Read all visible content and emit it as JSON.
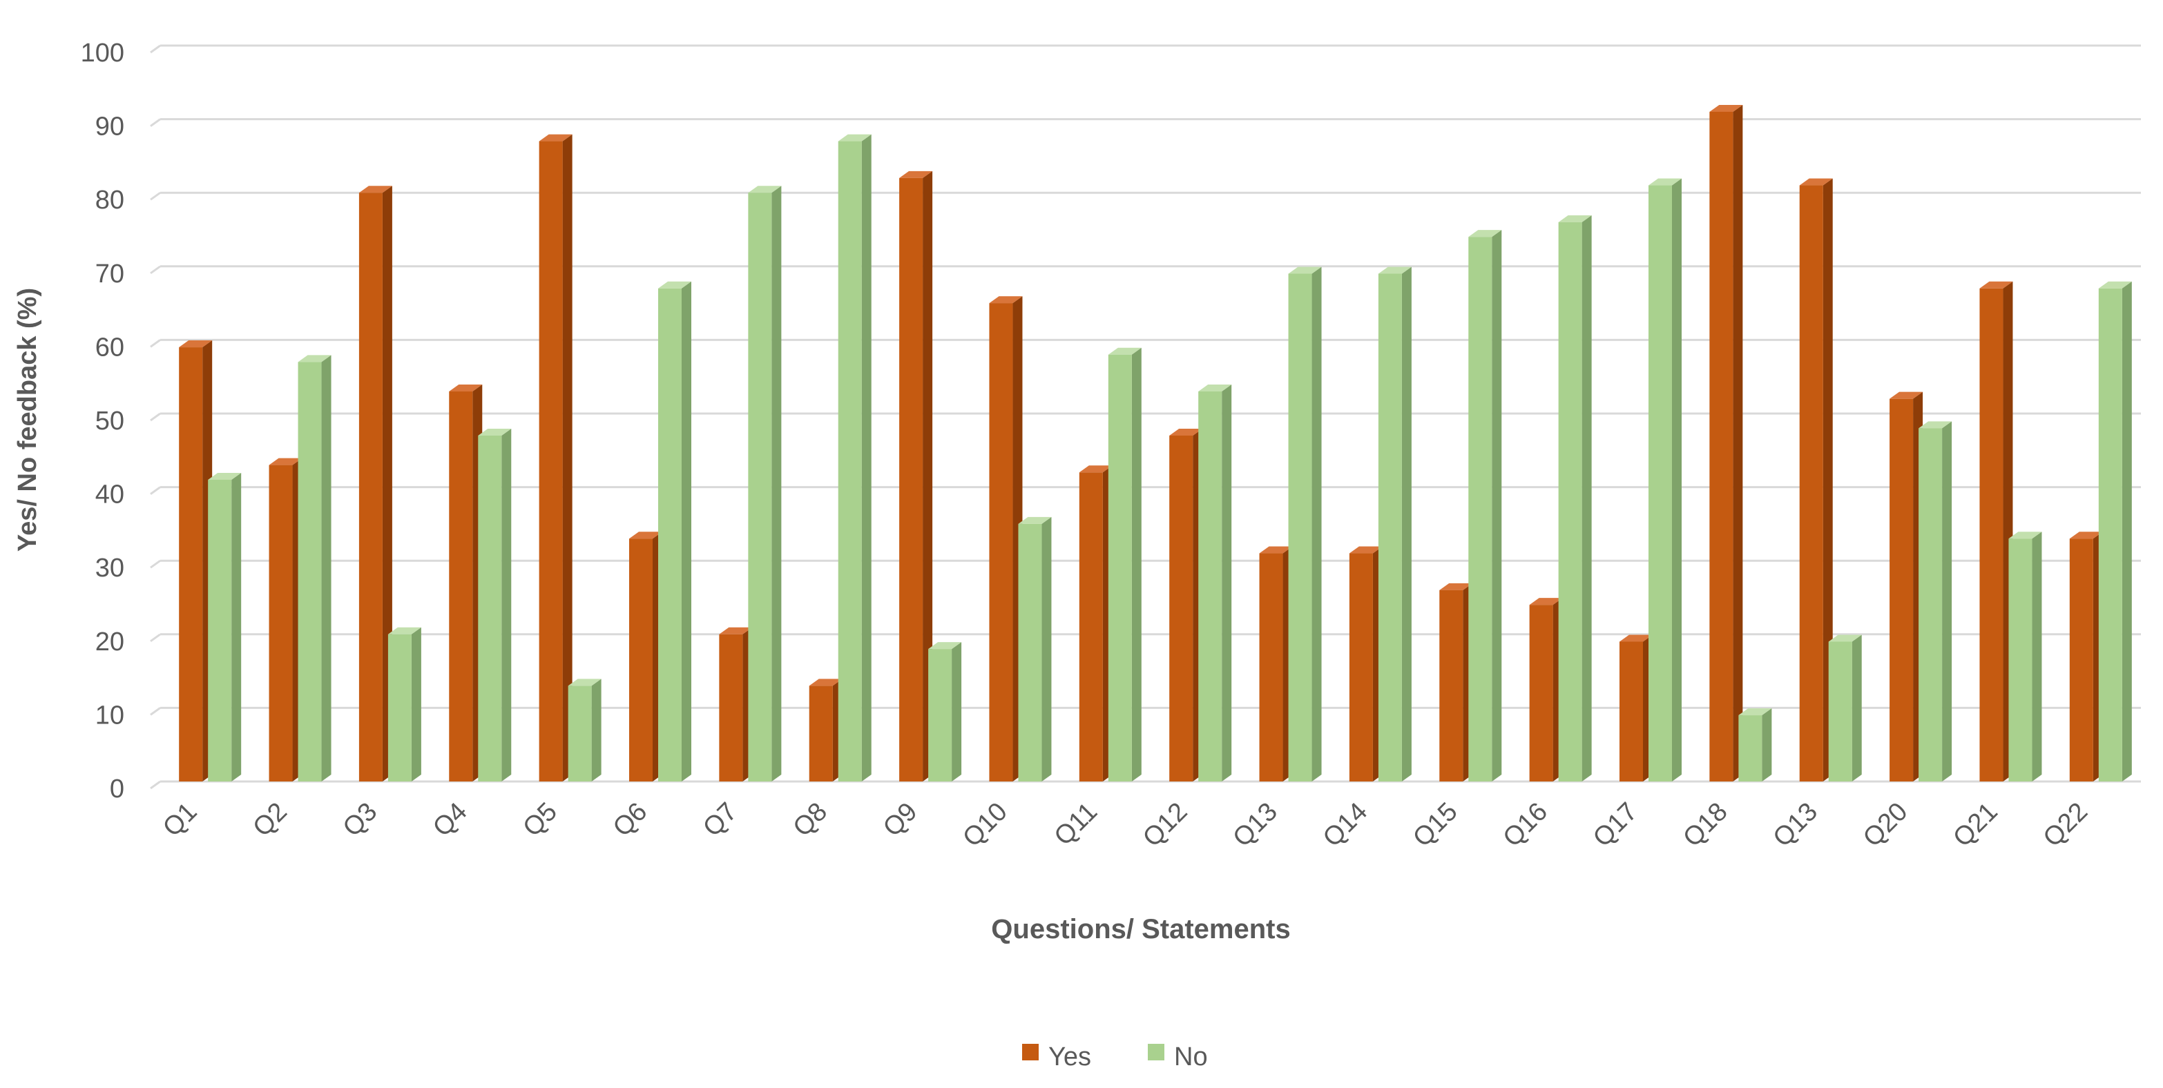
{
  "chart_data": {
    "type": "bar",
    "xlabel": "Questions/ Statements",
    "ylabel": "Yes/ No feedback (%)",
    "ylim": [
      0,
      100
    ],
    "yticks": [
      0,
      10,
      20,
      30,
      40,
      50,
      60,
      70,
      80,
      90,
      100
    ],
    "grid": true,
    "legend_position": "bottom",
    "categories": [
      "Q1",
      "Q2",
      "Q3",
      "Q4",
      "Q5",
      "Q6",
      "Q7",
      "Q8",
      "Q9",
      "Q10",
      "Q11",
      "Q12",
      "Q13",
      "Q14",
      "Q15",
      "Q16",
      "Q17",
      "Q18",
      "Q13",
      "Q20",
      "Q21",
      "Q22"
    ],
    "series": [
      {
        "name": "Yes",
        "color": "#C55A11",
        "side_color": "#8E3D08",
        "top_color": "#D9753A",
        "values": [
          59,
          43,
          80,
          53,
          87,
          33,
          20,
          13,
          82,
          65,
          42,
          47,
          31,
          31,
          26,
          24,
          19,
          91,
          81,
          52,
          67,
          33
        ]
      },
      {
        "name": "No",
        "color": "#A9D18E",
        "side_color": "#7FA36A",
        "top_color": "#C3E0AE",
        "values": [
          41,
          57,
          20,
          47,
          13,
          67,
          80,
          87,
          18,
          35,
          58,
          53,
          69,
          69,
          74,
          76,
          81,
          9,
          19,
          48,
          33,
          67
        ]
      }
    ],
    "colors": {
      "gridline": "#D9D9D9",
      "tick_label": "#595959",
      "axis_title": "#595959"
    }
  }
}
